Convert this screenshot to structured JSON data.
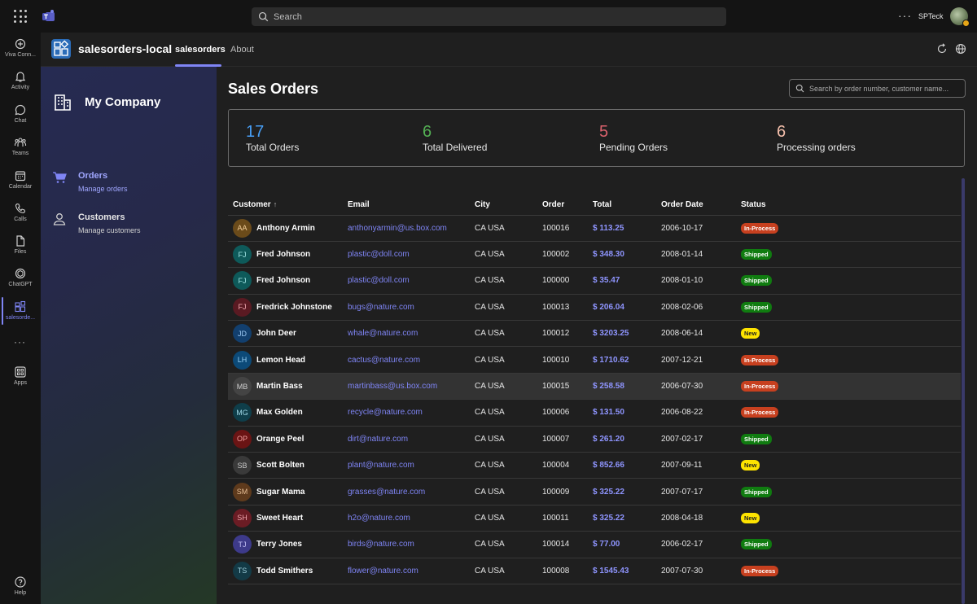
{
  "titlebar": {
    "search_placeholder": "Search",
    "more_label": "···",
    "user_name": "SPTeck"
  },
  "rail": {
    "items": [
      {
        "label": "Viva Conn...",
        "icon": "viva-connections-icon"
      },
      {
        "label": "Activity",
        "icon": "bell-icon"
      },
      {
        "label": "Chat",
        "icon": "chat-icon"
      },
      {
        "label": "Teams",
        "icon": "teams-icon"
      },
      {
        "label": "Calendar",
        "icon": "calendar-icon"
      },
      {
        "label": "Calls",
        "icon": "phone-icon"
      },
      {
        "label": "Files",
        "icon": "file-icon"
      },
      {
        "label": "ChatGPT",
        "icon": "chatgpt-icon"
      },
      {
        "label": "salesorde...",
        "icon": "app-icon"
      },
      {
        "label": "Apps",
        "icon": "apps-icon"
      },
      {
        "label": "Help",
        "icon": "help-icon"
      }
    ],
    "more_label": "···"
  },
  "app": {
    "name": "salesorders-local",
    "tabs": [
      {
        "label": "salesorders"
      },
      {
        "label": "About"
      }
    ]
  },
  "sidebar": {
    "company": "My Company",
    "nav": [
      {
        "title": "Orders",
        "subtitle": "Manage orders"
      },
      {
        "title": "Customers",
        "subtitle": "Manage customers"
      }
    ]
  },
  "main": {
    "title": "Sales Orders",
    "search_placeholder": "Search by order number, customer name...",
    "stats": [
      {
        "value": "17",
        "label": "Total Orders",
        "color": "#479ef5"
      },
      {
        "value": "6",
        "label": "Total Delivered",
        "color": "#54b054"
      },
      {
        "value": "5",
        "label": "Pending Orders",
        "color": "#dc626d"
      },
      {
        "value": "6",
        "label": "Processing orders",
        "color": "#f4bfab"
      }
    ],
    "columns": [
      "Customer",
      "Email",
      "City",
      "Order",
      "Total",
      "Order Date",
      "Status"
    ],
    "sort_indicator": "↑",
    "rows": [
      {
        "initials": "AA",
        "avatar_bg": "#6b4b1a",
        "avatar_fg": "#f5d09a",
        "customer": "Anthony Armin",
        "email": "anthonyarmin@us.box.com",
        "city": "CA USA",
        "order": "100016",
        "total": "$ 113.25",
        "date": "2006-10-17",
        "status": "In-Process"
      },
      {
        "initials": "FJ",
        "avatar_bg": "#0e5a5a",
        "avatar_fg": "#9fe3e3",
        "customer": "Fred Johnson",
        "email": "plastic@doll.com",
        "city": "CA USA",
        "order": "100002",
        "total": "$ 348.30",
        "date": "2008-01-14",
        "status": "Shipped"
      },
      {
        "initials": "FJ",
        "avatar_bg": "#0e5a5a",
        "avatar_fg": "#9fe3e3",
        "customer": "Fred Johnson",
        "email": "plastic@doll.com",
        "city": "CA USA",
        "order": "100000",
        "total": "$ 35.47",
        "date": "2008-01-10",
        "status": "Shipped"
      },
      {
        "initials": "FJ",
        "avatar_bg": "#5a1a22",
        "avatar_fg": "#f3a8b0",
        "customer": "Fredrick Johnstone",
        "email": "bugs@nature.com",
        "city": "CA USA",
        "order": "100013",
        "total": "$ 206.04",
        "date": "2008-02-06",
        "status": "Shipped"
      },
      {
        "initials": "JD",
        "avatar_bg": "#123f6e",
        "avatar_fg": "#9cc9f5",
        "customer": "John Deer",
        "email": "whale@nature.com",
        "city": "CA USA",
        "order": "100012",
        "total": "$ 3203.25",
        "date": "2008-06-14",
        "status": "New"
      },
      {
        "initials": "LH",
        "avatar_bg": "#0c4a78",
        "avatar_fg": "#9cd4f7",
        "customer": "Lemon Head",
        "email": "cactus@nature.com",
        "city": "CA USA",
        "order": "100010",
        "total": "$ 1710.62",
        "date": "2007-12-21",
        "status": "In-Process"
      },
      {
        "initials": "MB",
        "avatar_bg": "#444444",
        "avatar_fg": "#d0d0d0",
        "customer": "Martin Bass",
        "email": "martinbass@us.box.com",
        "city": "CA USA",
        "order": "100015",
        "total": "$ 258.58",
        "date": "2006-07-30",
        "status": "In-Process"
      },
      {
        "initials": "MG",
        "avatar_bg": "#0f3e4a",
        "avatar_fg": "#9fd7e6",
        "customer": "Max Golden",
        "email": "recycle@nature.com",
        "city": "CA USA",
        "order": "100006",
        "total": "$ 131.50",
        "date": "2006-08-22",
        "status": "In-Process"
      },
      {
        "initials": "OP",
        "avatar_bg": "#6a1414",
        "avatar_fg": "#f3a0a0",
        "customer": "Orange Peel",
        "email": "dirt@nature.com",
        "city": "CA USA",
        "order": "100007",
        "total": "$ 261.20",
        "date": "2007-02-17",
        "status": "Shipped"
      },
      {
        "initials": "SB",
        "avatar_bg": "#3a3a3a",
        "avatar_fg": "#c8c8c8",
        "customer": "Scott Bolten",
        "email": "plant@nature.com",
        "city": "CA USA",
        "order": "100004",
        "total": "$ 852.66",
        "date": "2007-09-11",
        "status": "New"
      },
      {
        "initials": "SM",
        "avatar_bg": "#5e3a1c",
        "avatar_fg": "#e8bf96",
        "customer": "Sugar Mama",
        "email": "grasses@nature.com",
        "city": "CA USA",
        "order": "100009",
        "total": "$ 325.22",
        "date": "2007-07-17",
        "status": "Shipped"
      },
      {
        "initials": "SH",
        "avatar_bg": "#6b1c24",
        "avatar_fg": "#f0a6ae",
        "customer": "Sweet Heart",
        "email": "h2o@nature.com",
        "city": "CA USA",
        "order": "100011",
        "total": "$ 325.22",
        "date": "2008-04-18",
        "status": "New"
      },
      {
        "initials": "TJ",
        "avatar_bg": "#3d3a8a",
        "avatar_fg": "#c2bff5",
        "customer": "Terry Jones",
        "email": "birds@nature.com",
        "city": "CA USA",
        "order": "100014",
        "total": "$ 77.00",
        "date": "2006-02-17",
        "status": "Shipped"
      },
      {
        "initials": "TS",
        "avatar_bg": "#133a46",
        "avatar_fg": "#9fd0de",
        "customer": "Todd Smithers",
        "email": "flower@nature.com",
        "city": "CA USA",
        "order": "100008",
        "total": "$ 1545.43",
        "date": "2007-07-30",
        "status": "In-Process"
      }
    ],
    "status_colors": {
      "In-Process": {
        "bg": "#c7401f",
        "fg": "#ffffff"
      },
      "Shipped": {
        "bg": "#107c10",
        "fg": "#ffffff"
      },
      "New": {
        "bg": "#fde300",
        "fg": "#1f1f1f"
      }
    },
    "hover_row_index": 6
  }
}
